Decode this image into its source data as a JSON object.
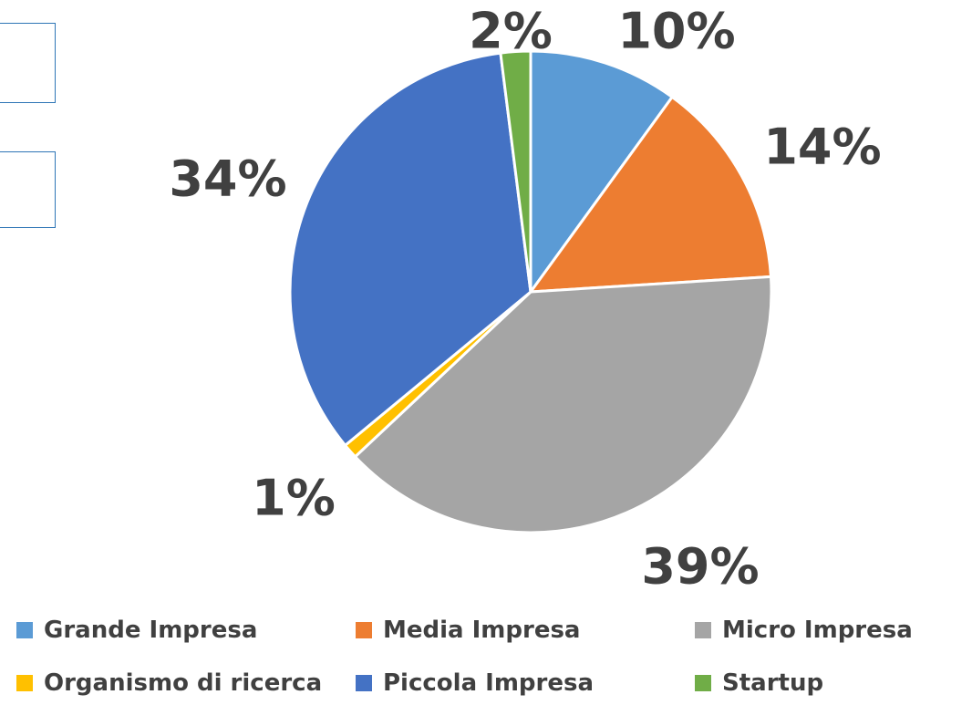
{
  "chart_data": {
    "type": "pie",
    "categories": [
      "Grande Impresa",
      "Media Impresa",
      "Micro Impresa",
      "Organismo di ricerca",
      "Piccola Impresa",
      "Startup"
    ],
    "values": [
      10,
      14,
      39,
      1,
      34,
      2
    ],
    "labels": [
      "10%",
      "14%",
      "39%",
      "1%",
      "34%",
      "2%"
    ],
    "colors": [
      "#5b9bd5",
      "#ed7d31",
      "#a5a5a5",
      "#ffc000",
      "#4472c4",
      "#70ad47"
    ],
    "legend_position": "bottom",
    "title": ""
  }
}
